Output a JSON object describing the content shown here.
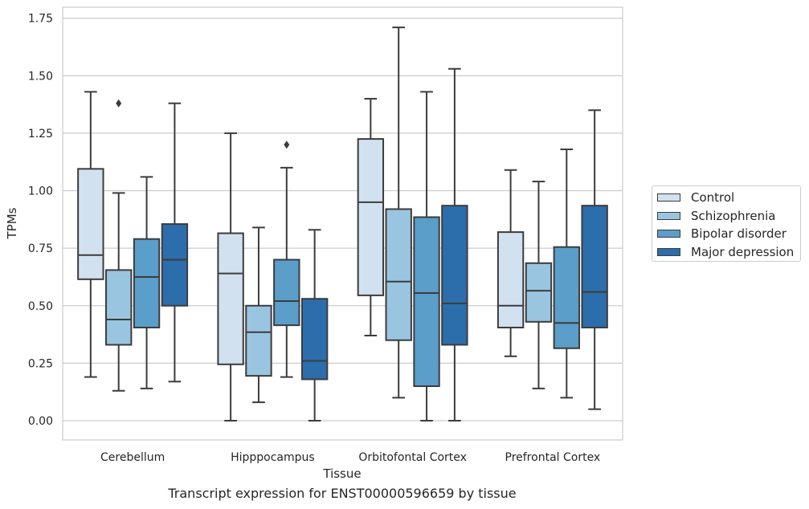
{
  "caption": "Transcript expression for ENST00000596659 by tissue",
  "legend_title": "",
  "chart_data": {
    "type": "box",
    "title": "",
    "xlabel": "Tissue",
    "ylabel": "TPMs",
    "ylim": [
      -0.08,
      1.8
    ],
    "yticks": [
      0.0,
      0.25,
      0.5,
      0.75,
      1.0,
      1.25,
      1.5,
      1.75
    ],
    "ytick_labels": [
      "0.00",
      "0.25",
      "0.50",
      "0.75",
      "1.00",
      "1.25",
      "1.50",
      "1.75"
    ],
    "grid": "horizontal",
    "legend_position": "right",
    "categories": [
      "Cerebellum",
      "Hipppocampus",
      "Orbitofontal Cortex",
      "Prefrontal Cortex"
    ],
    "series": [
      {
        "name": "Control",
        "color": "#d1e1f0",
        "boxes": [
          {
            "whislo": 0.19,
            "q1": 0.615,
            "med": 0.72,
            "q3": 1.095,
            "whishi": 1.43,
            "fliers": []
          },
          {
            "whislo": 0.0,
            "q1": 0.245,
            "med": 0.64,
            "q3": 0.815,
            "whishi": 1.25,
            "fliers": []
          },
          {
            "whislo": 0.37,
            "q1": 0.545,
            "med": 0.95,
            "q3": 1.225,
            "whishi": 1.4,
            "fliers": []
          },
          {
            "whislo": 0.28,
            "q1": 0.405,
            "med": 0.5,
            "q3": 0.82,
            "whishi": 1.09,
            "fliers": []
          }
        ]
      },
      {
        "name": "Schizophrenia",
        "color": "#9ac5e0",
        "boxes": [
          {
            "whislo": 0.13,
            "q1": 0.33,
            "med": 0.44,
            "q3": 0.655,
            "whishi": 0.99,
            "fliers": [
              1.38
            ]
          },
          {
            "whislo": 0.08,
            "q1": 0.195,
            "med": 0.385,
            "q3": 0.5,
            "whishi": 0.84,
            "fliers": []
          },
          {
            "whislo": 0.1,
            "q1": 0.35,
            "med": 0.605,
            "q3": 0.92,
            "whishi": 1.71,
            "fliers": []
          },
          {
            "whislo": 0.14,
            "q1": 0.43,
            "med": 0.565,
            "q3": 0.685,
            "whishi": 1.04,
            "fliers": []
          }
        ]
      },
      {
        "name": "Bipolar disorder",
        "color": "#5a9ec9",
        "boxes": [
          {
            "whislo": 0.14,
            "q1": 0.405,
            "med": 0.625,
            "q3": 0.79,
            "whishi": 1.06,
            "fliers": []
          },
          {
            "whislo": 0.19,
            "q1": 0.415,
            "med": 0.52,
            "q3": 0.7,
            "whishi": 1.1,
            "fliers": [
              1.2
            ]
          },
          {
            "whislo": 0.0,
            "q1": 0.15,
            "med": 0.555,
            "q3": 0.885,
            "whishi": 1.43,
            "fliers": []
          },
          {
            "whislo": 0.1,
            "q1": 0.315,
            "med": 0.425,
            "q3": 0.755,
            "whishi": 1.18,
            "fliers": []
          }
        ]
      },
      {
        "name": "Major depression",
        "color": "#2c6eac",
        "boxes": [
          {
            "whislo": 0.17,
            "q1": 0.5,
            "med": 0.7,
            "q3": 0.855,
            "whishi": 1.38,
            "fliers": []
          },
          {
            "whislo": 0.0,
            "q1": 0.18,
            "med": 0.26,
            "q3": 0.53,
            "whishi": 0.83,
            "fliers": []
          },
          {
            "whislo": 0.0,
            "q1": 0.33,
            "med": 0.51,
            "q3": 0.935,
            "whishi": 1.53,
            "fliers": []
          },
          {
            "whislo": 0.05,
            "q1": 0.405,
            "med": 0.56,
            "q3": 0.935,
            "whishi": 1.35,
            "fliers": []
          }
        ]
      }
    ]
  }
}
